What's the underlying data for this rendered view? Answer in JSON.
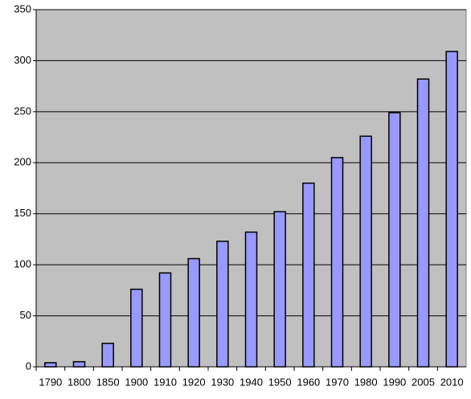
{
  "chart_data": {
    "type": "bar",
    "categories": [
      "1790",
      "1800",
      "1850",
      "1900",
      "1910",
      "1920",
      "1930",
      "1940",
      "1950",
      "1960",
      "1970",
      "1980",
      "1990",
      "2005",
      "2010"
    ],
    "values": [
      4,
      5,
      23,
      76,
      92,
      106,
      123,
      132,
      152,
      180,
      205,
      226,
      249,
      282,
      309
    ],
    "color": "#9999ff",
    "ylim": [
      0,
      350
    ],
    "yticks": [
      0,
      50,
      100,
      150,
      200,
      250,
      300,
      350
    ],
    "grid": true
  }
}
